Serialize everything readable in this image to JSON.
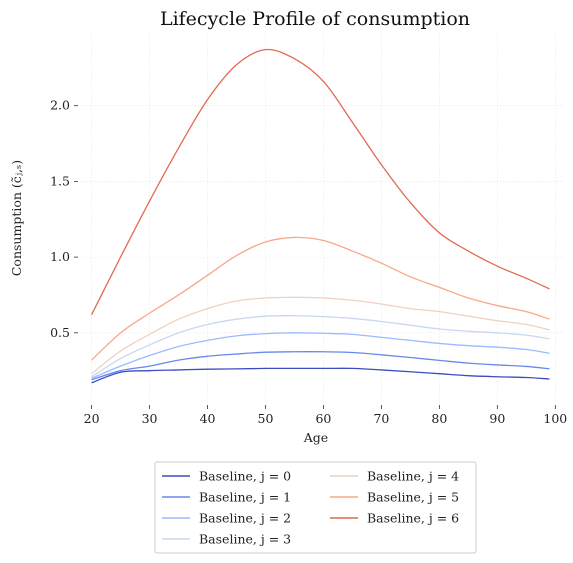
{
  "chart_data": {
    "type": "line",
    "title": "Lifecycle Profile of consumption",
    "xlabel": "Age",
    "ylabel": "Consumption (c̃ⱼ,ₛ)",
    "xlim": [
      18,
      101.5
    ],
    "ylim": [
      0.03,
      2.48
    ],
    "xticks": [
      "20",
      "30",
      "40",
      "50",
      "60",
      "70",
      "80",
      "90",
      "100"
    ],
    "yticks": [
      "0.5",
      "1.0",
      "1.5",
      "2.0"
    ],
    "grid": true,
    "legend_position": "bottom-center",
    "x": [
      20,
      25,
      30,
      35,
      40,
      45,
      50,
      55,
      60,
      65,
      70,
      75,
      80,
      85,
      90,
      95,
      99
    ],
    "series": [
      {
        "name": "Baseline, j = 0",
        "color": "#3b4cc0",
        "values": [
          0.17,
          0.24,
          0.25,
          0.255,
          0.26,
          0.262,
          0.265,
          0.265,
          0.265,
          0.265,
          0.255,
          0.243,
          0.23,
          0.217,
          0.21,
          0.205,
          0.195
        ]
      },
      {
        "name": "Baseline, j = 1",
        "color": "#6788ee",
        "values": [
          0.19,
          0.25,
          0.28,
          0.32,
          0.345,
          0.36,
          0.372,
          0.375,
          0.375,
          0.37,
          0.355,
          0.337,
          0.318,
          0.3,
          0.288,
          0.278,
          0.262
        ]
      },
      {
        "name": "Baseline, j = 2",
        "color": "#9abbff",
        "values": [
          0.2,
          0.28,
          0.35,
          0.41,
          0.45,
          0.48,
          0.495,
          0.5,
          0.497,
          0.49,
          0.47,
          0.45,
          0.43,
          0.415,
          0.405,
          0.39,
          0.365
        ]
      },
      {
        "name": "Baseline, j = 3",
        "color": "#c9d7f0",
        "values": [
          0.21,
          0.33,
          0.42,
          0.5,
          0.555,
          0.59,
          0.61,
          0.613,
          0.607,
          0.595,
          0.575,
          0.55,
          0.525,
          0.51,
          0.5,
          0.485,
          0.46
        ]
      },
      {
        "name": "Baseline, j = 4",
        "color": "#edd1c2",
        "values": [
          0.23,
          0.38,
          0.49,
          0.59,
          0.66,
          0.71,
          0.73,
          0.735,
          0.73,
          0.715,
          0.69,
          0.66,
          0.64,
          0.61,
          0.58,
          0.555,
          0.52
        ]
      },
      {
        "name": "Baseline, j = 5",
        "color": "#f7a889",
        "values": [
          0.32,
          0.5,
          0.63,
          0.75,
          0.88,
          1.01,
          1.1,
          1.13,
          1.11,
          1.04,
          0.96,
          0.87,
          0.8,
          0.73,
          0.68,
          0.64,
          0.59
        ]
      },
      {
        "name": "Baseline, j = 6",
        "color": "#e26952",
        "values": [
          0.62,
          1.0,
          1.37,
          1.72,
          2.04,
          2.27,
          2.37,
          2.31,
          2.16,
          1.89,
          1.61,
          1.36,
          1.16,
          1.04,
          0.94,
          0.86,
          0.79
        ]
      }
    ]
  }
}
